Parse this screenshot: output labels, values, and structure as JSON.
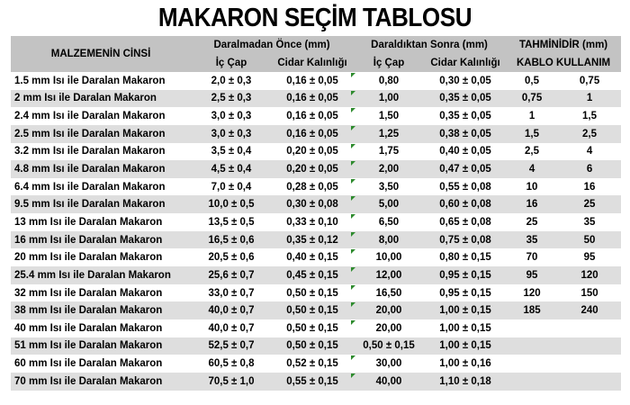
{
  "title": "MAKARON SEÇİM TABLOSU",
  "headers": {
    "material": "MALZEMENİN CİNSİ",
    "before_group": "Daralmadan Önce (mm)",
    "after_group": "Daraldıktan Sonra (mm)",
    "estimate_group": "TAHMİNİDİR (mm)",
    "inner_diameter_before": "İç Çap",
    "wall_thickness_before": "Cidar Kalınlığı",
    "inner_diameter_after": "İç Çap",
    "wall_thickness_after": "Cidar Kalınlığı",
    "cable_usage": "KABLO KULLANIM"
  },
  "indicator_color": "#2e8b2e",
  "rows": [
    [
      "1.5 mm Isı ile Daralan Makaron",
      "2,0 ± 0,3",
      "0,16 ± 0,05",
      "0,80",
      "0,30 ± 0,05",
      "0,5",
      "0,75"
    ],
    [
      "2 mm Isı ile Daralan Makaron",
      "2,5 ± 0,3",
      "0,16 ± 0,05",
      "1,00",
      "0,35 ± 0,05",
      "0,75",
      "1"
    ],
    [
      "2.4 mm Isı ile Daralan Makaron",
      "3,0 ± 0,3",
      "0,16 ± 0,05",
      "1,50",
      "0,35 ± 0,05",
      "1",
      "1,5"
    ],
    [
      "2.5 mm Isı ile Daralan Makaron",
      "3,0 ± 0,3",
      "0,16 ± 0,05",
      "1,25",
      "0,38 ± 0,05",
      "1,5",
      "2,5"
    ],
    [
      "3.2 mm Isı ile Daralan Makaron",
      "3,5 ± 0,4",
      "0,20 ± 0,05",
      "1,75",
      "0,40 ± 0,05",
      "2,5",
      "4"
    ],
    [
      "4.8 mm Isı ile Daralan Makaron",
      "4,5 ± 0,4",
      "0,20 ± 0,05",
      "2,00",
      "0,47 ± 0,05",
      "4",
      "6"
    ],
    [
      "6.4 mm Isı ile Daralan Makaron",
      "7,0 ± 0,4",
      "0,28 ± 0,05",
      "3,50",
      "0,55 ± 0,08",
      "10",
      "16"
    ],
    [
      "9.5 mm Isı ile Daralan Makaron",
      "10,0 ± 0,5",
      "0,30 ± 0,08",
      "5,00",
      "0,60 ± 0,08",
      "16",
      "25"
    ],
    [
      "13 mm Isı ile Daralan Makaron",
      "13,5 ± 0,5",
      "0,33 ± 0,10",
      "6,50",
      "0,65 ± 0,08",
      "25",
      "35"
    ],
    [
      "16 mm Isı ile Daralan Makaron",
      "16,5 ± 0,6",
      "0,35 ± 0,12",
      "8,00",
      "0,75 ± 0,08",
      "35",
      "50"
    ],
    [
      "20 mm Isı ile Daralan Makaron",
      "20,5 ± 0,6",
      "0,40 ± 0,15",
      "10,00",
      "0,80 ± 0,15",
      "70",
      "95"
    ],
    [
      "25.4 mm Isı ile Daralan Makaron",
      "25,6 ± 0,7",
      "0,45 ± 0,15",
      "12,00",
      "0,95 ± 0,15",
      "95",
      "120"
    ],
    [
      "32 mm Isı ile Daralan Makaron",
      "33,0 ± 0,7",
      "0,50 ± 0,15",
      "16,50",
      "0,95 ± 0,15",
      "120",
      "150"
    ],
    [
      "38 mm Isı ile Daralan Makaron",
      "40,0 ± 0,7",
      "0,50 ± 0,15",
      "20,00",
      "1,00 ± 0,15",
      "185",
      "240"
    ],
    [
      "40 mm Isı ile Daralan Makaron",
      "40,0 ± 0,7",
      "0,50 ± 0,15",
      "20,00",
      "1,00 ± 0,15",
      "",
      ""
    ],
    [
      "51 mm Isı ile Daralan Makaron",
      "52,5 ± 0,7",
      "0,50 ± 0,15",
      "0,50 ± 0,15",
      "1,00 ± 0,15",
      "",
      ""
    ],
    [
      "60 mm Isı ile Daralan Makaron",
      "60,5 ± 0,8",
      "0,52 ± 0,15",
      "30,00",
      "1,00 ± 0,16",
      "",
      ""
    ],
    [
      "70 mm Isı ile Daralan Makaron",
      "70,5 ± 1,0",
      "0,55 ± 0,15",
      "40,00",
      "1,10 ± 0,18",
      "",
      ""
    ]
  ],
  "rows_with_indicator": [
    true,
    true,
    true,
    true,
    true,
    true,
    true,
    true,
    true,
    true,
    true,
    true,
    true,
    true,
    true,
    false,
    true,
    true
  ]
}
